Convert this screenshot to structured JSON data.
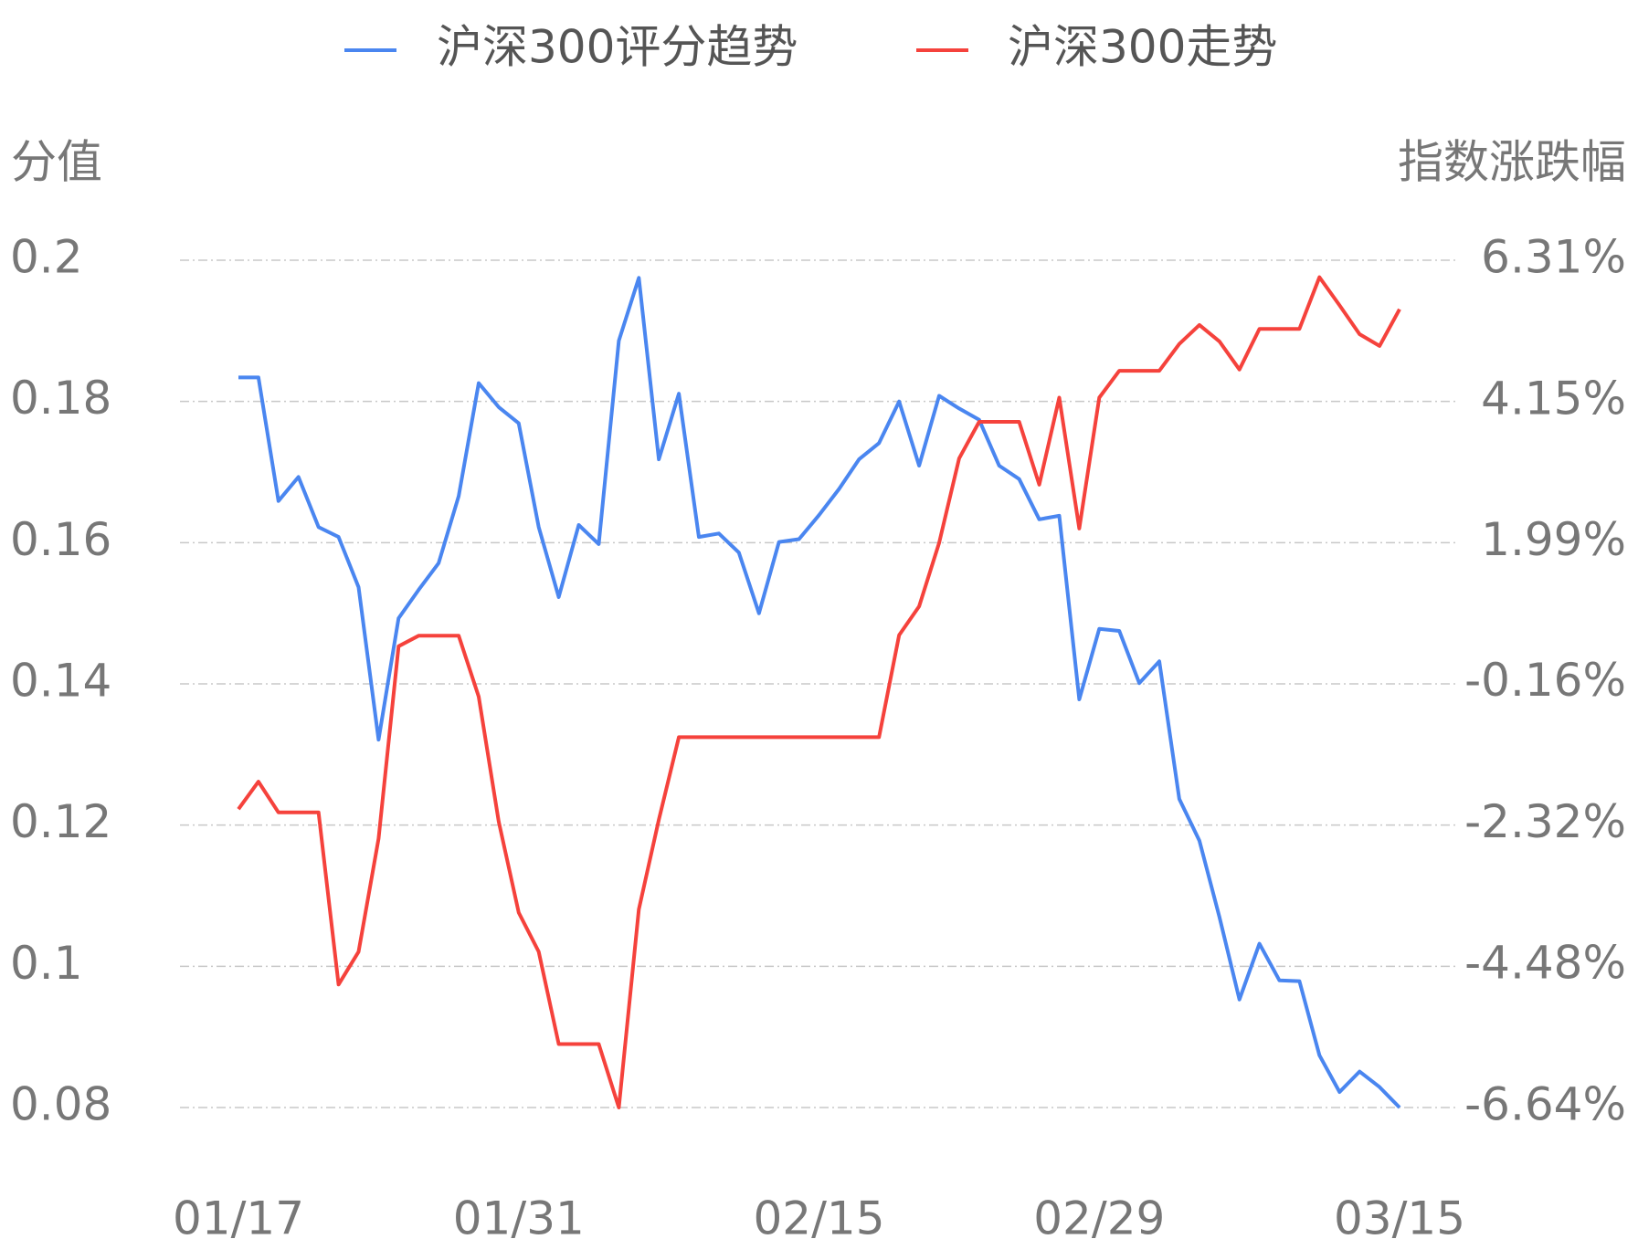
{
  "chart_data": {
    "type": "line",
    "legend": "top",
    "ylabel": "分值",
    "y2label": "指数涨跌幅",
    "categories": [
      "01/17",
      null,
      null,
      null,
      null,
      null,
      null,
      null,
      null,
      null,
      null,
      null,
      null,
      null,
      "01/31",
      null,
      null,
      null,
      null,
      null,
      null,
      null,
      null,
      null,
      null,
      null,
      null,
      null,
      null,
      "02/15",
      null,
      null,
      null,
      null,
      null,
      null,
      null,
      null,
      null,
      null,
      null,
      null,
      null,
      "02/29",
      null,
      null,
      null,
      null,
      null,
      null,
      null,
      null,
      null,
      null,
      null,
      null,
      null,
      null,
      "03/15"
    ],
    "ylim": [
      0.08,
      0.2
    ],
    "yticks": [
      0.08,
      0.1,
      0.12,
      0.14,
      0.16,
      0.18,
      0.2
    ],
    "y2lim": [
      -6.64,
      6.31
    ],
    "y2ticks": [
      {
        "value": -6.64,
        "label": "-6.64%"
      },
      {
        "value": -4.48,
        "label": "-4.48%"
      },
      {
        "value": -2.32,
        "label": "-2.32%"
      },
      {
        "value": -0.16,
        "label": "-0.16%"
      },
      {
        "value": 1.99,
        "label": "1.99%"
      },
      {
        "value": 4.15,
        "label": "4.15%"
      },
      {
        "value": 6.31,
        "label": "6.31%"
      }
    ],
    "grid": true,
    "series": [
      {
        "name": "沪深300评分趋势",
        "color": "#4a86f0",
        "values": [
          0.1834,
          0.1834,
          0.1659,
          0.1693,
          0.1622,
          0.1608,
          0.1537,
          0.1321,
          0.1493,
          0.1533,
          0.1571,
          0.1666,
          0.1826,
          0.1792,
          0.1769,
          0.1622,
          0.1523,
          0.1625,
          0.1598,
          0.1886,
          0.1975,
          0.1718,
          0.1811,
          0.1608,
          0.1613,
          0.1586,
          0.15,
          0.1601,
          0.1605,
          0.1639,
          0.1676,
          0.1718,
          0.1741,
          0.18,
          0.1709,
          0.1808,
          0.179,
          0.1774,
          0.1709,
          0.169,
          0.1633,
          0.1638,
          0.1378,
          0.1478,
          0.1475,
          0.1401,
          0.1432,
          0.1237,
          0.1178,
          0.107,
          0.0953,
          0.1032,
          0.098,
          0.0979,
          0.0874,
          0.0822,
          0.0851,
          0.0829,
          0.08
        ]
      },
      {
        "name": "沪深300走势",
        "color": "#f5423c",
        "axis": "y2",
        "values": [
          -2.08,
          -1.66,
          -2.13,
          -2.13,
          -2.13,
          -4.76,
          -4.26,
          -2.53,
          0.41,
          0.57,
          0.57,
          0.57,
          -0.36,
          -2.27,
          -3.66,
          -4.26,
          -5.67,
          -5.67,
          -5.67,
          -6.64,
          -3.61,
          -2.24,
          -0.98,
          -0.98,
          -0.98,
          -0.98,
          -0.98,
          -0.98,
          -0.98,
          -0.98,
          -0.98,
          -0.98,
          -0.98,
          0.58,
          1.02,
          1.99,
          3.28,
          3.84,
          3.84,
          3.84,
          2.88,
          4.21,
          2.21,
          4.21,
          4.62,
          4.62,
          4.62,
          5.03,
          5.32,
          5.07,
          4.64,
          5.26,
          5.26,
          5.26,
          6.05,
          5.62,
          5.18,
          5.0,
          5.56
        ]
      }
    ]
  }
}
